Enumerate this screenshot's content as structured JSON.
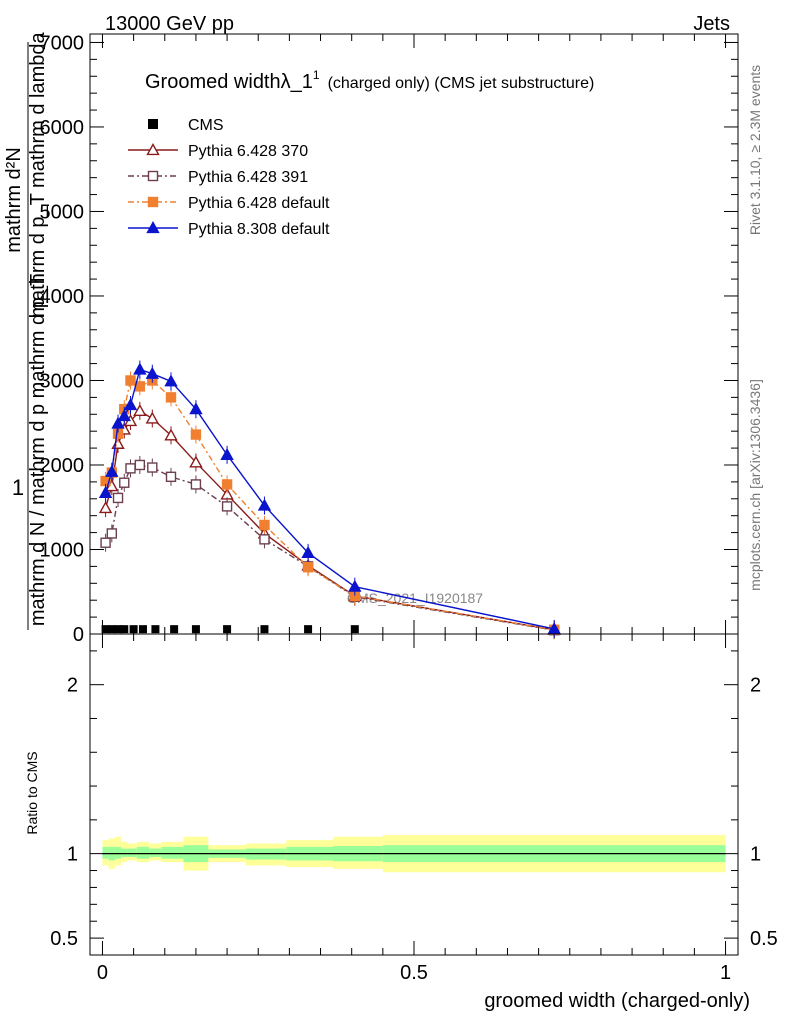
{
  "header": {
    "left": "13000 GeV pp",
    "right": "Jets"
  },
  "title": {
    "main": "Groomed widthλ_1",
    "sup": "1",
    "sub": "(charged only) (CMS jet substructure)"
  },
  "side_labels": {
    "rivet": "Rivet 3.1.10, ≥ 2.3M events",
    "mcplots": "mcplots.cern.ch [arXiv:1306.3436]"
  },
  "watermark": "CMS_2021_I1920187",
  "ylabel": {
    "one": "1",
    "numer": "mathrm d²N",
    "numer_b": "mathrm d p_T mathrm d lambda",
    "denom": "mathrm d N / mathrm d p mathrm d p_T"
  },
  "xlabel": "groomed width (charged-only)",
  "ratio_ylabel": "Ratio to CMS",
  "chart_data": {
    "type": "line",
    "xlim": [
      -0.02,
      1.02
    ],
    "ylim": [
      0,
      7100
    ],
    "ratio_ylim": [
      0.4,
      2.3
    ],
    "x_ticks": [
      0,
      0.5,
      1
    ],
    "x_tick_labels": [
      "0",
      "0.5",
      "1"
    ],
    "y_ticks": [
      0,
      1000,
      2000,
      3000,
      4000,
      5000,
      6000,
      7000
    ],
    "y_tick_labels": [
      "0",
      "1000",
      "2000",
      "3000",
      "4000",
      "5000",
      "6000",
      "7000"
    ],
    "ratio_ticks": [
      0.5,
      1,
      2
    ],
    "ratio_tick_labels": [
      "0.5",
      "1",
      "2"
    ],
    "legend_position": "top-left",
    "cms": {
      "name": "CMS",
      "x": [
        0.005,
        0.015,
        0.025,
        0.035,
        0.05,
        0.065,
        0.085,
        0.115,
        0.15,
        0.2,
        0.26,
        0.33,
        0.405
      ],
      "y": [
        10,
        10,
        10,
        10,
        10,
        10,
        10,
        10,
        10,
        10,
        10,
        10,
        10
      ]
    },
    "series": [
      {
        "name": "Pythia 6.428 370",
        "color": "#8b1a1a",
        "dash": "",
        "marker": "triangle-open",
        "x": [
          0.005,
          0.015,
          0.025,
          0.035,
          0.045,
          0.06,
          0.08,
          0.11,
          0.15,
          0.2,
          0.26,
          0.33,
          0.405,
          0.725
        ],
        "y": [
          1490,
          1750,
          2250,
          2420,
          2520,
          2640,
          2550,
          2350,
          2030,
          1650,
          1190,
          810,
          450,
          50
        ]
      },
      {
        "name": "Pythia 6.428 391",
        "color": "#6b3f50",
        "dash": "6,3,2,3",
        "marker": "square-open",
        "x": [
          0.005,
          0.015,
          0.025,
          0.035,
          0.045,
          0.06,
          0.08,
          0.11,
          0.15,
          0.2,
          0.26,
          0.33,
          0.405,
          0.725
        ],
        "y": [
          1080,
          1190,
          1610,
          1790,
          1960,
          2000,
          1970,
          1860,
          1770,
          1510,
          1120,
          800,
          440,
          45
        ]
      },
      {
        "name": "Pythia 6.428 default",
        "color": "#f08030",
        "dash": "6,3,2,3",
        "marker": "square",
        "x": [
          0.005,
          0.015,
          0.025,
          0.035,
          0.045,
          0.06,
          0.08,
          0.11,
          0.15,
          0.2,
          0.26,
          0.33,
          0.405,
          0.725
        ],
        "y": [
          1810,
          1910,
          2370,
          2660,
          3000,
          2930,
          3000,
          2800,
          2360,
          1770,
          1290,
          790,
          450,
          50
        ]
      },
      {
        "name": "Pythia 8.308 default",
        "color": "#0a14cc",
        "dash": "",
        "marker": "triangle",
        "x": [
          0.005,
          0.015,
          0.025,
          0.035,
          0.045,
          0.06,
          0.08,
          0.11,
          0.15,
          0.2,
          0.26,
          0.33,
          0.405,
          0.725
        ],
        "y": [
          1670,
          1920,
          2490,
          2580,
          2710,
          3130,
          3080,
          2990,
          2660,
          2120,
          1520,
          960,
          560,
          60
        ]
      }
    ],
    "ratio_bands": {
      "edges": [
        0,
        0.01,
        0.02,
        0.03,
        0.04,
        0.055,
        0.075,
        0.095,
        0.13,
        0.17,
        0.23,
        0.295,
        0.37,
        0.45,
        1.0
      ],
      "outer": [
        [
          0.93,
          1.08
        ],
        [
          0.91,
          1.09
        ],
        [
          0.93,
          1.1
        ],
        [
          0.95,
          1.07
        ],
        [
          0.96,
          1.06
        ],
        [
          0.95,
          1.07
        ],
        [
          0.96,
          1.06
        ],
        [
          0.95,
          1.07
        ],
        [
          0.9,
          1.1
        ],
        [
          0.95,
          1.05
        ],
        [
          0.93,
          1.06
        ],
        [
          0.92,
          1.08
        ],
        [
          0.91,
          1.1
        ],
        [
          0.89,
          1.11
        ],
        [
          0.89,
          1.11
        ]
      ],
      "inner": [
        [
          0.97,
          1.04
        ],
        [
          0.96,
          1.04
        ],
        [
          0.97,
          1.04
        ],
        [
          0.98,
          1.03
        ],
        [
          0.98,
          1.03
        ],
        [
          0.97,
          1.04
        ],
        [
          0.98,
          1.03
        ],
        [
          0.97,
          1.04
        ],
        [
          0.95,
          1.05
        ],
        [
          0.975,
          1.025
        ],
        [
          0.965,
          1.03
        ],
        [
          0.96,
          1.04
        ],
        [
          0.955,
          1.045
        ],
        [
          0.95,
          1.05
        ],
        [
          0.95,
          1.05
        ]
      ],
      "outer_color": "#ffff99",
      "inner_color": "#99ff99"
    }
  }
}
